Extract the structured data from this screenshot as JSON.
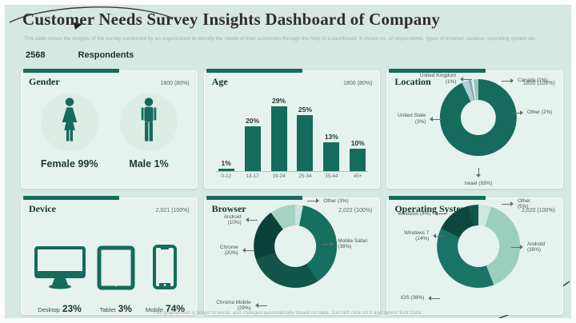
{
  "slide": {
    "title": "Customer Needs Survey Insights Dashboard of Company",
    "subtitle": "This slide shows the insights of the survey conducted by an organization to identify the needs of their customers through the help of a dashboard. It shows no. of respondents, types of browser, location, operating system etc.",
    "footer": "This graph/chart is linked to excel, and changes automatically based on data. Just left click on it and select 'Edit Data'.",
    "respondents": {
      "count": "2568",
      "label": "Respondents"
    }
  },
  "colors": {
    "accent": "#156b5c",
    "page_bg": "#d5e8e1",
    "panel_bg": "#e6f2ed"
  },
  "panels": {
    "gender": {
      "title": "Gender",
      "value": "1800 (80%)",
      "items": [
        {
          "icon": "female-icon",
          "label": "Female 99%"
        },
        {
          "icon": "male-icon",
          "label": "Male 1%"
        }
      ]
    },
    "age": {
      "title": "Age",
      "value": "1800 (80%)"
    },
    "location": {
      "title": "Location",
      "value": "1800 (100%)",
      "segments": [
        {
          "label": "Israel (93%)",
          "value": 93,
          "color": "#156b5c"
        },
        {
          "label": "United State (3%)",
          "value": 3,
          "color": "#aecfd4"
        },
        {
          "label": "United Kingdom (1%)",
          "value": 1,
          "color": "#7fa8b0"
        },
        {
          "label": "Canada (1%)",
          "value": 1,
          "color": "#d9edf0"
        },
        {
          "label": "Other (2%)",
          "value": 2,
          "color": "#9ec4bf"
        }
      ]
    },
    "device": {
      "title": "Device",
      "value": "2,021 (100%)",
      "items": [
        {
          "icon": "desktop-icon",
          "name": "Desktop",
          "percent": "23%"
        },
        {
          "icon": "tablet-icon",
          "name": "Tablet",
          "percent": "3%"
        },
        {
          "icon": "mobile-icon",
          "name": "Mobile",
          "percent": "74%"
        }
      ]
    },
    "browser": {
      "title": "Browser",
      "value": "2,022 (100%)",
      "segments": [
        {
          "label": "Other (3%)",
          "value": 3,
          "color": "#c9e4da"
        },
        {
          "label": "Mobile Safari (38%)",
          "value": 38,
          "color": "#16705f"
        },
        {
          "label": "Chrome Mobile (29%)",
          "value": 29,
          "color": "#115649"
        },
        {
          "label": "Chrome (20%)",
          "value": 20,
          "color": "#0a4138"
        },
        {
          "label": "Android (10%)",
          "value": 10,
          "color": "#a5d3c3"
        }
      ]
    },
    "os": {
      "title": "Operating System",
      "value": "2,020 (100%)",
      "segments": [
        {
          "label": "Other (5%)",
          "value": 5,
          "color": "#cde7de"
        },
        {
          "label": "Android (39%)",
          "value": 39,
          "color": "#9bcebd"
        },
        {
          "label": "iOS (38%)",
          "value": 38,
          "color": "#187465"
        },
        {
          "label": "Windows 7 (14%)",
          "value": 14,
          "color": "#0b473d"
        },
        {
          "label": "Windows (4%)",
          "value": 4,
          "color": "#10584a"
        }
      ]
    }
  },
  "chart_data": [
    {
      "type": "pictogram",
      "title": "Gender",
      "total_label": "1800 (80%)",
      "categories": [
        "Female",
        "Male"
      ],
      "values": [
        99,
        1
      ],
      "unit": "%"
    },
    {
      "type": "bar",
      "title": "Age",
      "total_label": "1800 (80%)",
      "categories": [
        "0-12",
        "13-17",
        "19-24",
        "25-34",
        "35-44",
        "45+"
      ],
      "values": [
        1,
        20,
        29,
        25,
        13,
        10
      ],
      "unit": "%",
      "ylim": [
        0,
        29
      ],
      "xlabel": "",
      "ylabel": "",
      "grid": false,
      "value_labels": true
    },
    {
      "type": "pie",
      "title": "Location",
      "total_label": "1800 (100%)",
      "categories": [
        "Israel",
        "United State",
        "United Kingdom",
        "Canada",
        "Other"
      ],
      "values": [
        93,
        3,
        1,
        1,
        2
      ],
      "unit": "%",
      "donut": true
    },
    {
      "type": "pictogram",
      "title": "Device",
      "total_label": "2,021 (100%)",
      "categories": [
        "Desktop",
        "Tablet",
        "Mobile"
      ],
      "values": [
        23,
        3,
        74
      ],
      "unit": "%"
    },
    {
      "type": "pie",
      "title": "Browser",
      "total_label": "2,022 (100%)",
      "categories": [
        "Other",
        "Mobile Safari",
        "Chrome Mobile",
        "Chrome",
        "Android"
      ],
      "values": [
        3,
        38,
        29,
        20,
        10
      ],
      "unit": "%",
      "donut": true
    },
    {
      "type": "pie",
      "title": "Operating System",
      "total_label": "2,020 (100%)",
      "categories": [
        "Other",
        "Android",
        "iOS",
        "Windows 7",
        "Windows"
      ],
      "values": [
        5,
        39,
        38,
        14,
        4
      ],
      "unit": "%",
      "donut": true
    }
  ]
}
